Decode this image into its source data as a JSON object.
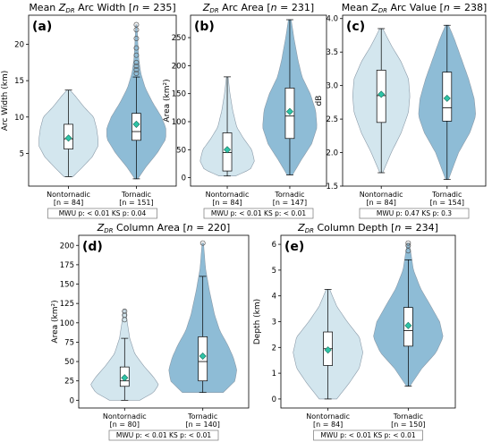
{
  "colors": {
    "nontornadic": "#d3e6ee",
    "tornadic": "#8ebcd6",
    "edge": "#8a9aa8",
    "mean_marker": "#2ec4a6"
  },
  "chart_data": [
    {
      "id": "a",
      "type": "violin",
      "panel_label": "(a)",
      "title": "Mean Z_DR Arc Width [n = 235]",
      "title_parts": [
        "Mean ",
        "Z",
        "DR",
        " Arc Width [",
        "n",
        " = 235]"
      ],
      "ylabel": "Arc Width (km)",
      "ylim": [
        0.5,
        24
      ],
      "yticks": [
        5,
        10,
        15,
        20
      ],
      "stats": "MWU p: < 0.01     KS p: 0.04",
      "groups": [
        {
          "label": "Nontornadic",
          "n_label": "[n = 84]",
          "color": "nontornadic",
          "min": 1.8,
          "q1": 5.6,
          "median": 7.0,
          "q3": 9.0,
          "max": 13.7,
          "mean": 7.1,
          "outliers": [],
          "density": [
            [
              1.8,
              0.15
            ],
            [
              3,
              0.45
            ],
            [
              4.5,
              0.8
            ],
            [
              6,
              1.0
            ],
            [
              7,
              1.0
            ],
            [
              8.5,
              0.95
            ],
            [
              10,
              0.85
            ],
            [
              11.5,
              0.5
            ],
            [
              12.8,
              0.25
            ],
            [
              13.7,
              0.05
            ]
          ]
        },
        {
          "label": "Tornadic",
          "n_label": "[n = 151]",
          "color": "tornadic",
          "min": 1.5,
          "q1": 6.8,
          "median": 8.0,
          "q3": 10.5,
          "max": 15.5,
          "mean": 9.0,
          "outliers": [
            16.0,
            16.5,
            17.0,
            17.5,
            18.5,
            19.5,
            20.8,
            22.0,
            22.7
          ],
          "density": [
            [
              1.5,
              0.05
            ],
            [
              3,
              0.3
            ],
            [
              5,
              0.7
            ],
            [
              7,
              1.0
            ],
            [
              8.5,
              1.0
            ],
            [
              10,
              0.85
            ],
            [
              12,
              0.55
            ],
            [
              14,
              0.3
            ],
            [
              16,
              0.15
            ],
            [
              18,
              0.08
            ],
            [
              20,
              0.05
            ],
            [
              22.7,
              0.02
            ]
          ]
        }
      ]
    },
    {
      "id": "b",
      "type": "violin",
      "panel_label": "(b)",
      "title": "Z_DR Arc Area [n = 231]",
      "title_parts": [
        "",
        "Z",
        "DR",
        " Arc Area [",
        "n",
        " = 231]"
      ],
      "ylabel": "Area (km²)",
      "ylim": [
        -15,
        290
      ],
      "yticks": [
        0,
        50,
        100,
        150,
        200,
        250
      ],
      "stats": "MWU p: < 0.01     KS p: < 0.01",
      "groups": [
        {
          "label": "Nontornadic",
          "n_label": "[n = 84]",
          "color": "nontornadic",
          "min": 3,
          "q1": 12,
          "median": 45,
          "q3": 80,
          "max": 180,
          "mean": 50,
          "outliers": [],
          "density": [
            [
              3,
              0.3
            ],
            [
              15,
              0.85
            ],
            [
              30,
              1.0
            ],
            [
              50,
              0.9
            ],
            [
              70,
              0.6
            ],
            [
              90,
              0.35
            ],
            [
              120,
              0.2
            ],
            [
              150,
              0.1
            ],
            [
              180,
              0.03
            ]
          ]
        },
        {
          "label": "Tornadic",
          "n_label": "[n = 147]",
          "color": "tornadic",
          "min": 5,
          "q1": 70,
          "median": 110,
          "q3": 160,
          "max": 282,
          "mean": 118,
          "outliers": [],
          "density": [
            [
              5,
              0.1
            ],
            [
              30,
              0.4
            ],
            [
              60,
              0.8
            ],
            [
              90,
              1.0
            ],
            [
              120,
              0.95
            ],
            [
              150,
              0.75
            ],
            [
              180,
              0.45
            ],
            [
              210,
              0.3
            ],
            [
              250,
              0.15
            ],
            [
              282,
              0.05
            ]
          ]
        }
      ]
    },
    {
      "id": "c",
      "type": "violin",
      "panel_label": "(c)",
      "title": "Mean Z_DR Arc Value [n = 238]",
      "title_parts": [
        "Mean ",
        "Z",
        "DR",
        " Arc Value [",
        "n",
        " = 238]"
      ],
      "ylabel": "dB",
      "ylim": [
        1.5,
        4.05
      ],
      "yticks": [
        1.5,
        2.0,
        2.5,
        3.0,
        3.5,
        4.0
      ],
      "stats": "MWU p: 0.47     KS p: 0.3",
      "groups": [
        {
          "label": "Nontornadic",
          "n_label": "[n = 84]",
          "color": "nontornadic",
          "min": 1.7,
          "q1": 2.45,
          "median": 2.85,
          "q3": 3.23,
          "max": 3.85,
          "mean": 2.87,
          "outliers": [],
          "density": [
            [
              1.7,
              0.05
            ],
            [
              2.0,
              0.35
            ],
            [
              2.3,
              0.7
            ],
            [
              2.6,
              0.95
            ],
            [
              2.85,
              1.0
            ],
            [
              3.1,
              0.95
            ],
            [
              3.35,
              0.7
            ],
            [
              3.6,
              0.35
            ],
            [
              3.85,
              0.05
            ]
          ]
        },
        {
          "label": "Tornadic",
          "n_label": "[n = 154]",
          "color": "tornadic",
          "min": 1.6,
          "q1": 2.47,
          "median": 2.67,
          "q3": 3.2,
          "max": 3.9,
          "mean": 2.81,
          "outliers": [],
          "density": [
            [
              1.6,
              0.05
            ],
            [
              2.0,
              0.4
            ],
            [
              2.3,
              0.8
            ],
            [
              2.55,
              1.0
            ],
            [
              2.8,
              0.95
            ],
            [
              3.1,
              0.75
            ],
            [
              3.4,
              0.5
            ],
            [
              3.7,
              0.25
            ],
            [
              3.9,
              0.05
            ]
          ]
        }
      ]
    },
    {
      "id": "d",
      "type": "violin",
      "panel_label": "(d)",
      "title": "Z_DR Column Area [n = 220]",
      "title_parts": [
        "",
        "Z",
        "DR",
        " Column Area [",
        "n",
        " = 220]"
      ],
      "ylabel": "Area (km²)",
      "ylim": [
        -10,
        213
      ],
      "yticks": [
        0,
        25,
        50,
        75,
        100,
        125,
        150,
        175,
        200
      ],
      "stats": "MWU p: < 0.01     KS p: < 0.01",
      "groups": [
        {
          "label": "Nontornadic",
          "n_label": "[n = 80]",
          "color": "nontornadic",
          "min": 0,
          "q1": 18,
          "median": 25,
          "q3": 43,
          "max": 80,
          "mean": 29,
          "outliers": [
            104,
            110,
            115
          ],
          "density": [
            [
              0,
              0.45
            ],
            [
              10,
              0.85
            ],
            [
              20,
              1.0
            ],
            [
              30,
              0.85
            ],
            [
              45,
              0.55
            ],
            [
              60,
              0.3
            ],
            [
              80,
              0.15
            ],
            [
              100,
              0.08
            ],
            [
              117,
              0.03
            ]
          ]
        },
        {
          "label": "Tornadic",
          "n_label": "[n = 140]",
          "color": "tornadic",
          "min": 10,
          "q1": 25,
          "median": 50,
          "q3": 82,
          "max": 160,
          "mean": 57,
          "outliers": [
            203
          ],
          "density": [
            [
              10,
              0.6
            ],
            [
              25,
              0.95
            ],
            [
              40,
              1.0
            ],
            [
              55,
              0.9
            ],
            [
              70,
              0.75
            ],
            [
              90,
              0.5
            ],
            [
              110,
              0.35
            ],
            [
              140,
              0.2
            ],
            [
              170,
              0.08
            ],
            [
              203,
              0.02
            ]
          ]
        }
      ]
    },
    {
      "id": "e",
      "type": "violin",
      "panel_label": "(e)",
      "title": "Z_DR Column Depth [n = 234]",
      "title_parts": [
        "",
        "Z",
        "DR",
        " Column Depth [",
        "n",
        " = 234]"
      ],
      "ylabel": "Depth (km)",
      "ylim": [
        -0.35,
        6.35
      ],
      "yticks": [
        0,
        1,
        2,
        3,
        4,
        5,
        6
      ],
      "stats": "MWU p: < 0.01     KS p: < 0.01",
      "groups": [
        {
          "label": "Nontornadic",
          "n_label": "[n = 84]",
          "color": "nontornadic",
          "min": 0,
          "q1": 1.3,
          "median": 1.95,
          "q3": 2.6,
          "max": 4.25,
          "mean": 1.9,
          "outliers": [],
          "density": [
            [
              0,
              0.25
            ],
            [
              0.6,
              0.6
            ],
            [
              1.2,
              0.9
            ],
            [
              1.8,
              1.0
            ],
            [
              2.4,
              0.9
            ],
            [
              3.0,
              0.55
            ],
            [
              3.6,
              0.25
            ],
            [
              4.25,
              0.05
            ]
          ]
        },
        {
          "label": "Tornadic",
          "n_label": "[n = 150]",
          "color": "tornadic",
          "min": 0.5,
          "q1": 2.05,
          "median": 2.65,
          "q3": 3.55,
          "max": 5.4,
          "mean": 2.85,
          "outliers": [
            5.75,
            5.95,
            6.05
          ],
          "density": [
            [
              0.5,
              0.05
            ],
            [
              1.2,
              0.4
            ],
            [
              1.8,
              0.8
            ],
            [
              2.4,
              1.0
            ],
            [
              3.0,
              0.9
            ],
            [
              3.6,
              0.65
            ],
            [
              4.3,
              0.35
            ],
            [
              5.0,
              0.15
            ],
            [
              6.05,
              0.03
            ]
          ]
        }
      ]
    }
  ]
}
